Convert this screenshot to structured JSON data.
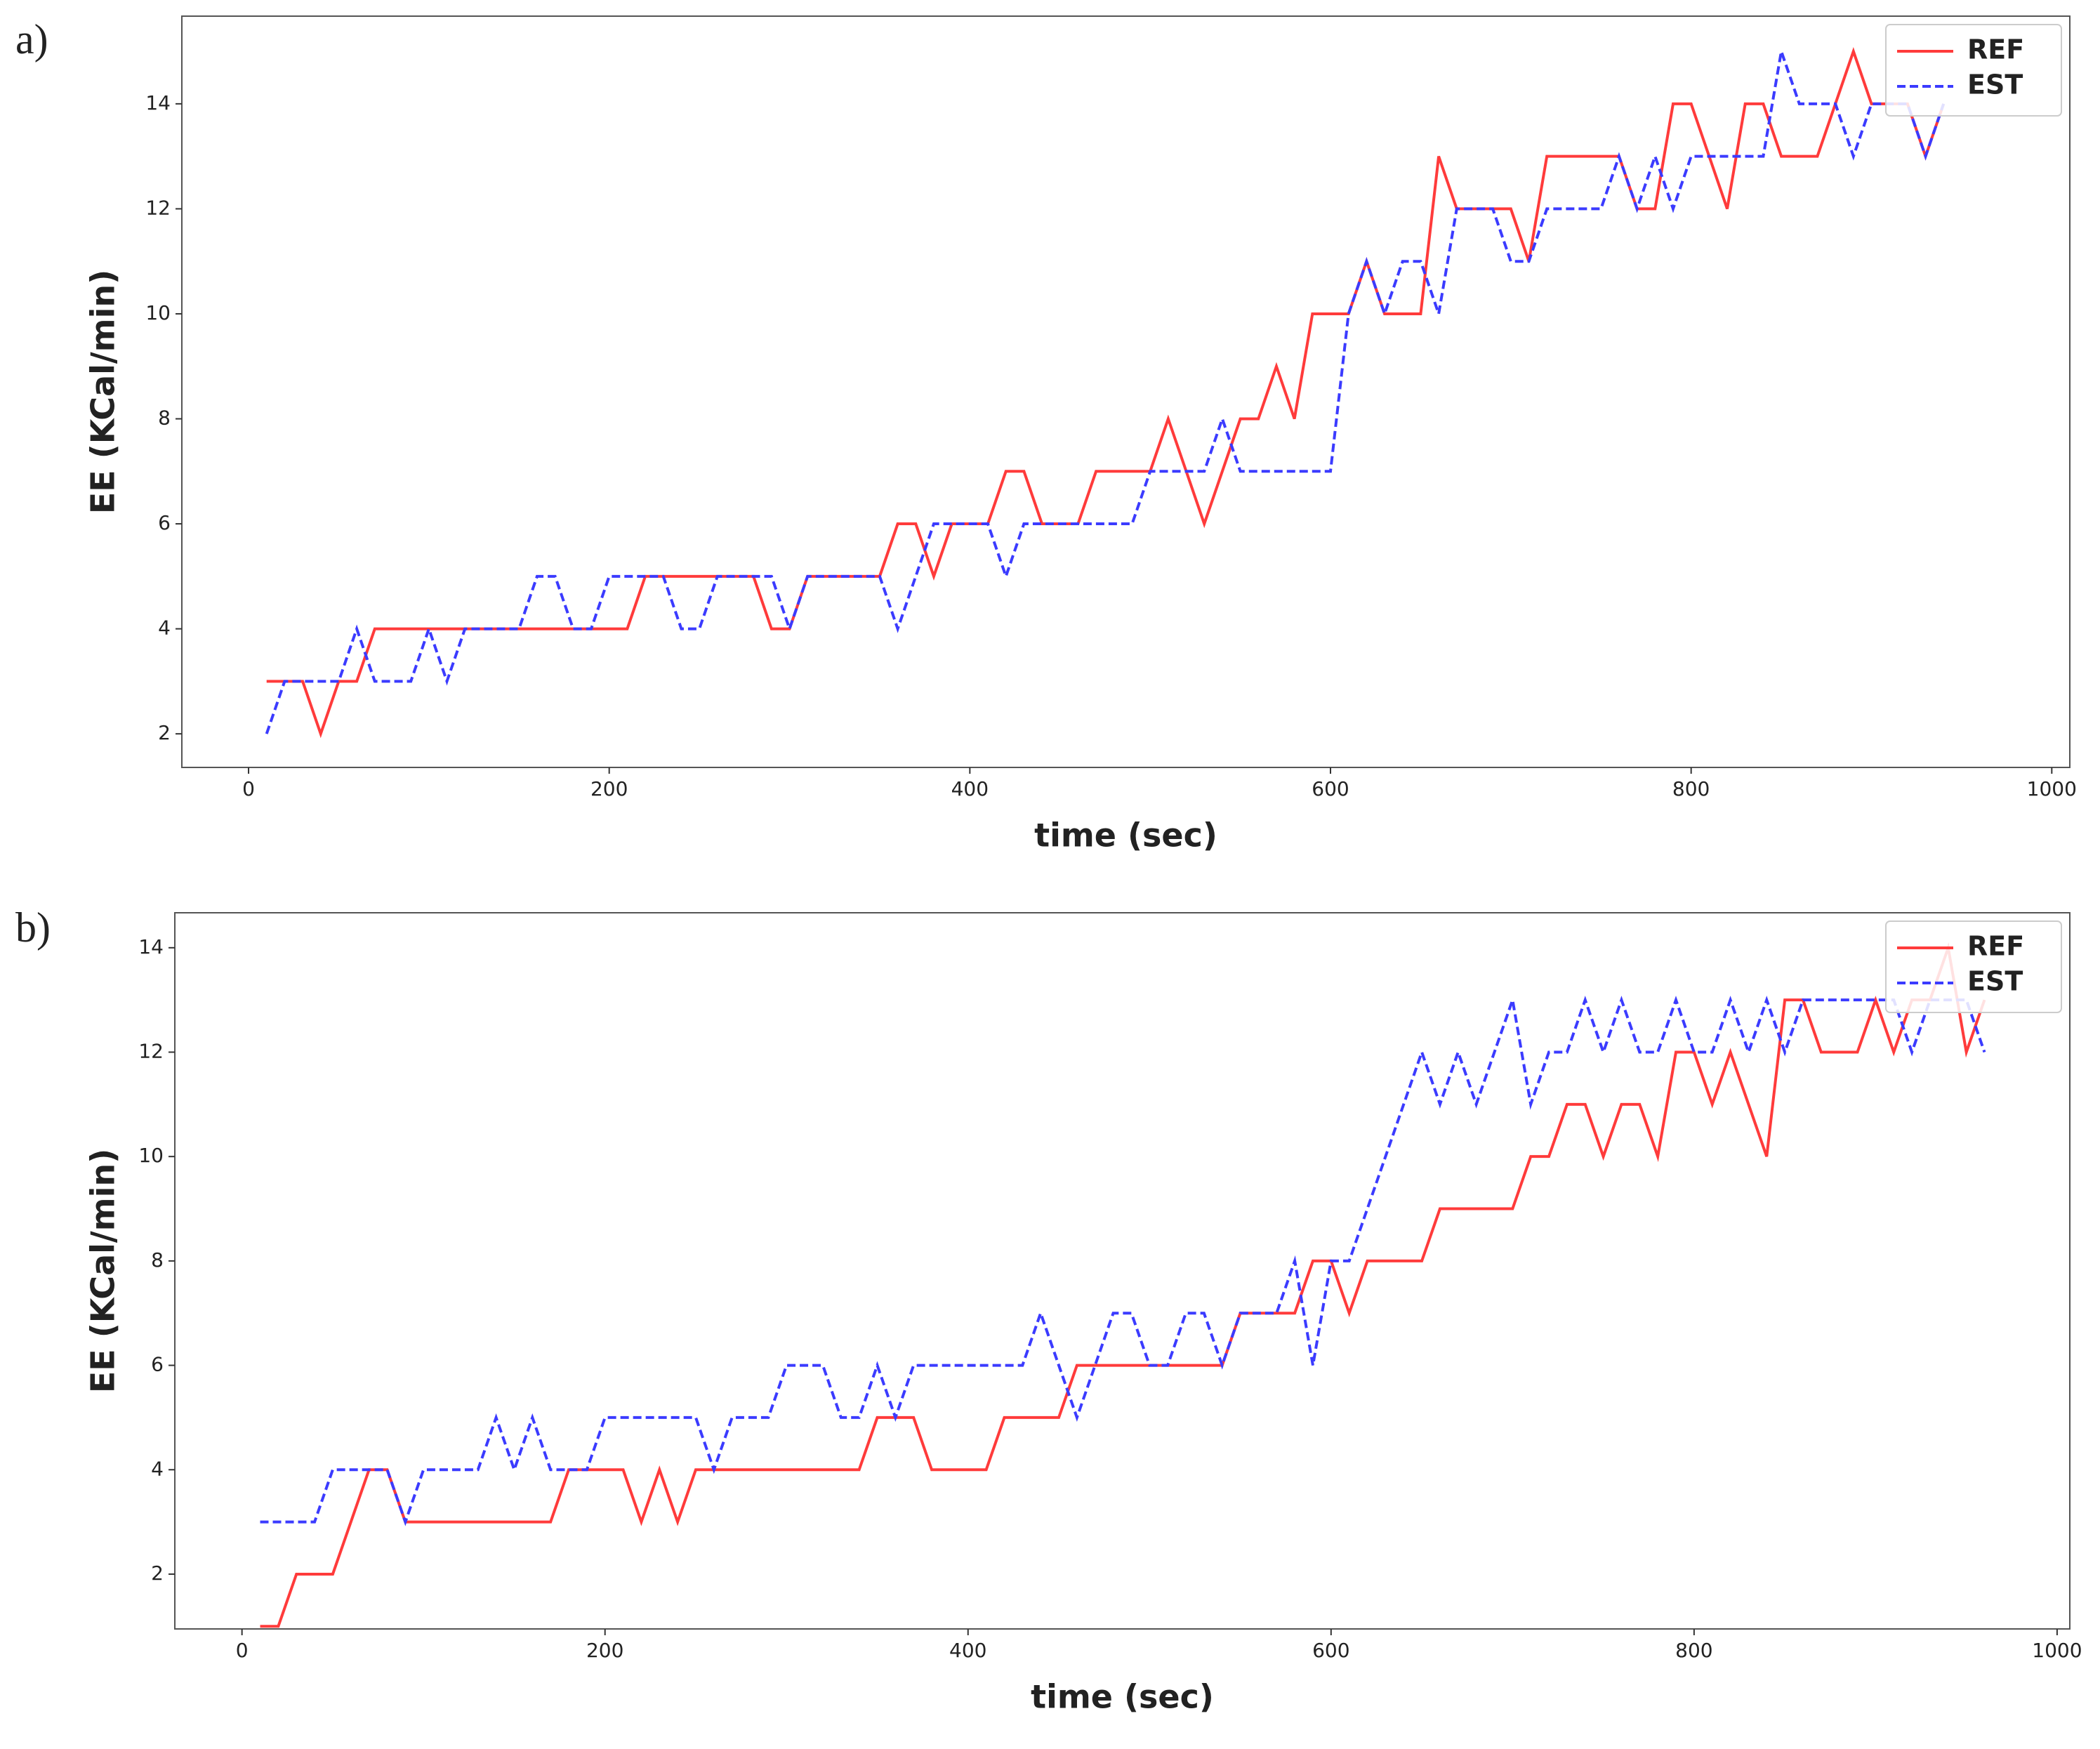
{
  "chart_data": [
    {
      "type": "line",
      "panel_label": "a)",
      "xlabel": "time (sec)",
      "ylabel": "EE (KCal/min)",
      "x": [
        10,
        20,
        30,
        40,
        50,
        60,
        70,
        80,
        90,
        100,
        110,
        120,
        130,
        140,
        150,
        160,
        170,
        180,
        190,
        200,
        210,
        220,
        230,
        240,
        250,
        260,
        270,
        280,
        290,
        300,
        310,
        320,
        330,
        340,
        350,
        360,
        370,
        380,
        390,
        400,
        410,
        420,
        430,
        440,
        450,
        460,
        470,
        480,
        490,
        500,
        510,
        520,
        530,
        540,
        550,
        560,
        570,
        580,
        590,
        600,
        610,
        620,
        630,
        640,
        650,
        660,
        670,
        680,
        690,
        700,
        710,
        720,
        730,
        740,
        750,
        760,
        770,
        780,
        790,
        800,
        810,
        820,
        830,
        840,
        850,
        860,
        870,
        880,
        890,
        900,
        910,
        920,
        930,
        940
      ],
      "series": [
        {
          "name": "REF",
          "color": "#ff3b3b",
          "linestyle": "solid",
          "values": [
            3,
            3,
            3,
            2,
            3,
            3,
            4,
            4,
            4,
            4,
            4,
            4,
            4,
            4,
            4,
            4,
            4,
            4,
            4,
            4,
            4,
            5,
            5,
            5,
            5,
            5,
            5,
            5,
            4,
            4,
            5,
            5,
            5,
            5,
            5,
            6,
            6,
            5,
            6,
            6,
            6,
            7,
            7,
            6,
            6,
            6,
            7,
            7,
            7,
            7,
            8,
            7,
            6,
            7,
            8,
            8,
            9,
            8,
            10,
            10,
            10,
            11,
            10,
            10,
            10,
            13,
            12,
            12,
            12,
            12,
            11,
            13,
            13,
            13,
            13,
            13,
            12,
            12,
            14,
            14,
            13,
            12,
            14,
            14,
            13,
            13,
            13,
            14,
            15,
            14,
            14,
            14,
            13,
            14
          ]
        },
        {
          "name": "EST",
          "color": "#3b3bff",
          "linestyle": "dashed",
          "values": [
            2,
            3,
            3,
            3,
            3,
            4,
            3,
            3,
            3,
            4,
            3,
            4,
            4,
            4,
            4,
            5,
            5,
            4,
            4,
            5,
            5,
            5,
            5,
            4,
            4,
            5,
            5,
            5,
            5,
            4,
            5,
            5,
            5,
            5,
            5,
            4,
            5,
            6,
            6,
            6,
            6,
            5,
            6,
            6,
            6,
            6,
            6,
            6,
            6,
            7,
            7,
            7,
            7,
            8,
            7,
            7,
            7,
            7,
            7,
            7,
            10,
            11,
            10,
            11,
            11,
            10,
            12,
            12,
            12,
            11,
            11,
            12,
            12,
            12,
            12,
            13,
            12,
            13,
            12,
            13,
            13,
            13,
            13,
            13,
            15,
            14,
            14,
            14,
            13,
            14,
            14,
            14,
            13,
            14
          ]
        }
      ],
      "xlim": [
        -37,
        1010
      ],
      "ylim": [
        1.36,
        15.67
      ],
      "xticks": [
        0,
        200,
        400,
        600,
        800,
        1000
      ],
      "yticks": [
        2,
        4,
        6,
        8,
        10,
        12,
        14
      ],
      "legend": "upper right",
      "grid": false
    },
    {
      "type": "line",
      "panel_label": "b)",
      "xlabel": "time (sec)",
      "ylabel": "EE (KCal/min)",
      "x": [
        10,
        20,
        30,
        40,
        50,
        60,
        70,
        80,
        90,
        100,
        110,
        120,
        130,
        140,
        150,
        160,
        170,
        180,
        190,
        200,
        210,
        220,
        230,
        240,
        250,
        260,
        270,
        280,
        290,
        300,
        310,
        320,
        330,
        340,
        350,
        360,
        370,
        380,
        390,
        400,
        410,
        420,
        430,
        440,
        450,
        460,
        470,
        480,
        490,
        500,
        510,
        520,
        530,
        540,
        550,
        560,
        570,
        580,
        590,
        600,
        610,
        620,
        630,
        640,
        650,
        660,
        670,
        680,
        690,
        700,
        710,
        720,
        730,
        740,
        750,
        760,
        770,
        780,
        790,
        800,
        810,
        820,
        830,
        840,
        850,
        860,
        870,
        880,
        890,
        900,
        910,
        920,
        930,
        940,
        950,
        960
      ],
      "series": [
        {
          "name": "REF",
          "color": "#ff3b3b",
          "linestyle": "solid",
          "values": [
            1,
            1,
            2,
            2,
            2,
            3,
            4,
            4,
            3,
            3,
            3,
            3,
            3,
            3,
            3,
            3,
            3,
            4,
            4,
            4,
            4,
            3,
            4,
            3,
            4,
            4,
            4,
            4,
            4,
            4,
            4,
            4,
            4,
            4,
            5,
            5,
            5,
            4,
            4,
            4,
            4,
            5,
            5,
            5,
            5,
            6,
            6,
            6,
            6,
            6,
            6,
            6,
            6,
            6,
            7,
            7,
            7,
            7,
            8,
            8,
            7,
            8,
            8,
            8,
            8,
            9,
            9,
            9,
            9,
            9,
            10,
            10,
            11,
            11,
            10,
            11,
            11,
            10,
            12,
            12,
            11,
            12,
            11,
            10,
            13,
            13,
            12,
            12,
            12,
            13,
            12,
            13,
            13,
            14,
            12,
            13
          ]
        },
        {
          "name": "EST",
          "color": "#3b3bff",
          "linestyle": "dashed",
          "values": [
            3,
            3,
            3,
            3,
            4,
            4,
            4,
            4,
            3,
            4,
            4,
            4,
            4,
            5,
            4,
            5,
            4,
            4,
            4,
            5,
            5,
            5,
            5,
            5,
            5,
            4,
            5,
            5,
            5,
            6,
            6,
            6,
            5,
            5,
            6,
            5,
            6,
            6,
            6,
            6,
            6,
            6,
            6,
            7,
            6,
            5,
            6,
            7,
            7,
            6,
            6,
            7,
            7,
            6,
            7,
            7,
            7,
            8,
            6,
            8,
            8,
            9,
            10,
            11,
            12,
            11,
            12,
            11,
            12,
            13,
            11,
            12,
            12,
            13,
            12,
            13,
            12,
            12,
            13,
            12,
            12,
            13,
            12,
            13,
            12,
            13,
            13,
            13,
            13,
            13,
            13,
            12,
            13,
            13,
            13,
            12
          ]
        }
      ],
      "xlim": [
        -37,
        1007
      ],
      "ylim": [
        0.95,
        14.67
      ],
      "xticks": [
        0,
        200,
        400,
        600,
        800,
        1000
      ],
      "yticks": [
        2,
        4,
        6,
        8,
        10,
        12,
        14
      ],
      "legend": "upper right",
      "grid": false
    }
  ]
}
